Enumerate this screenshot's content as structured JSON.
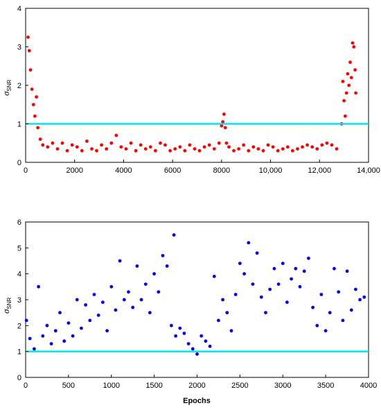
{
  "chart_data": [
    {
      "type": "scatter",
      "title": "",
      "xlabel": "",
      "ylabel": "σ",
      "ylabel_sub": "SNR",
      "xlim": [
        0,
        14000
      ],
      "ylim": [
        0,
        4
      ],
      "xticks": [
        0,
        2000,
        4000,
        6000,
        8000,
        10000,
        12000,
        14000
      ],
      "xtick_labels": [
        "0",
        "2000",
        "4000",
        "6000",
        "8000",
        "10,000",
        "12,000",
        "14,000"
      ],
      "yticks": [
        0,
        1,
        2,
        3,
        4
      ],
      "ytick_labels": [
        "0",
        "1",
        "2",
        "3",
        "4"
      ],
      "grid": false,
      "threshold": 1.0,
      "colors": {
        "points": "#ff0000",
        "threshold": "#00e5ee"
      },
      "x": [
        100,
        150,
        200,
        260,
        320,
        380,
        440,
        500,
        600,
        700,
        900,
        1100,
        1300,
        1500,
        1700,
        1900,
        2100,
        2300,
        2500,
        2700,
        2900,
        3100,
        3300,
        3500,
        3700,
        3900,
        4100,
        4300,
        4500,
        4700,
        4900,
        5100,
        5300,
        5500,
        5700,
        5900,
        6100,
        6300,
        6500,
        6700,
        6900,
        7100,
        7300,
        7500,
        7700,
        7900,
        8000,
        8050,
        8100,
        8150,
        8200,
        8300,
        8500,
        8700,
        8900,
        9100,
        9300,
        9500,
        9700,
        9900,
        10100,
        10300,
        10500,
        10700,
        10900,
        11100,
        11300,
        11500,
        11700,
        11900,
        12100,
        12300,
        12500,
        12700,
        12900,
        12950,
        13000,
        13050,
        13100,
        13150,
        13200,
        13250,
        13300,
        13350,
        13400,
        13450,
        13480
      ],
      "y": [
        3.25,
        2.9,
        2.4,
        1.9,
        1.5,
        1.2,
        1.7,
        0.9,
        0.6,
        0.45,
        0.4,
        0.5,
        0.35,
        0.5,
        0.3,
        0.45,
        0.4,
        0.3,
        0.55,
        0.35,
        0.3,
        0.45,
        0.35,
        0.5,
        0.7,
        0.4,
        0.35,
        0.5,
        0.3,
        0.45,
        0.35,
        0.4,
        0.3,
        0.5,
        0.45,
        0.3,
        0.35,
        0.4,
        0.3,
        0.45,
        0.35,
        0.3,
        0.4,
        0.45,
        0.35,
        0.5,
        0.95,
        1.05,
        1.25,
        0.9,
        0.5,
        0.4,
        0.3,
        0.35,
        0.45,
        0.3,
        0.4,
        0.35,
        0.3,
        0.45,
        0.4,
        0.3,
        0.35,
        0.4,
        0.3,
        0.35,
        0.4,
        0.45,
        0.4,
        0.35,
        0.45,
        0.5,
        0.45,
        0.35,
        1.0,
        2.1,
        1.6,
        1.2,
        1.8,
        2.3,
        2.0,
        2.6,
        2.2,
        3.1,
        3.0,
        2.4,
        1.8
      ]
    },
    {
      "type": "scatter",
      "title": "",
      "xlabel": "Epochs",
      "ylabel": "σ",
      "ylabel_sub": "SNR",
      "xlim": [
        0,
        4000
      ],
      "ylim": [
        0,
        6
      ],
      "xticks": [
        0,
        500,
        1000,
        1500,
        2000,
        2500,
        3000,
        3500,
        4000
      ],
      "xtick_labels": [
        "0",
        "500",
        "1000",
        "1500",
        "2000",
        "2500",
        "3000",
        "3500",
        "4000"
      ],
      "yticks": [
        0,
        1,
        2,
        3,
        4,
        5,
        6
      ],
      "ytick_labels": [
        "0",
        "1",
        "2",
        "3",
        "4",
        "5",
        "6"
      ],
      "grid": false,
      "threshold": 1.0,
      "colors": {
        "points": "#0000ee",
        "threshold": "#00e5ee"
      },
      "x": [
        10,
        50,
        100,
        150,
        200,
        250,
        300,
        350,
        400,
        450,
        500,
        550,
        600,
        650,
        700,
        750,
        800,
        850,
        900,
        950,
        1000,
        1050,
        1100,
        1150,
        1200,
        1250,
        1300,
        1350,
        1400,
        1450,
        1500,
        1550,
        1600,
        1650,
        1700,
        1730,
        1750,
        1800,
        1850,
        1900,
        1950,
        2000,
        2050,
        2100,
        2150,
        2200,
        2250,
        2300,
        2350,
        2400,
        2450,
        2500,
        2550,
        2600,
        2650,
        2700,
        2750,
        2800,
        2850,
        2900,
        2950,
        3000,
        3050,
        3100,
        3150,
        3200,
        3250,
        3300,
        3350,
        3400,
        3450,
        3500,
        3550,
        3600,
        3650,
        3700,
        3750,
        3800,
        3850,
        3900,
        3950
      ],
      "y": [
        2.2,
        1.5,
        1.1,
        3.5,
        1.6,
        2.0,
        1.3,
        1.8,
        2.5,
        1.4,
        2.1,
        1.6,
        3.0,
        1.9,
        2.8,
        2.2,
        3.2,
        2.4,
        2.9,
        1.8,
        3.5,
        2.6,
        4.5,
        3.0,
        3.3,
        2.7,
        4.3,
        3.0,
        3.6,
        2.5,
        4.0,
        3.3,
        4.7,
        4.3,
        2.0,
        5.5,
        1.6,
        1.9,
        1.7,
        1.3,
        1.1,
        0.9,
        1.6,
        1.4,
        1.2,
        3.9,
        2.2,
        3.0,
        2.5,
        1.8,
        3.2,
        4.4,
        4.0,
        5.2,
        3.6,
        4.8,
        3.1,
        2.5,
        3.4,
        4.2,
        3.6,
        4.4,
        2.9,
        3.8,
        4.2,
        3.5,
        4.1,
        4.6,
        2.7,
        2.0,
        3.2,
        1.8,
        2.5,
        4.2,
        3.3,
        2.2,
        4.1,
        2.6,
        3.4,
        3.0,
        3.1
      ]
    }
  ]
}
